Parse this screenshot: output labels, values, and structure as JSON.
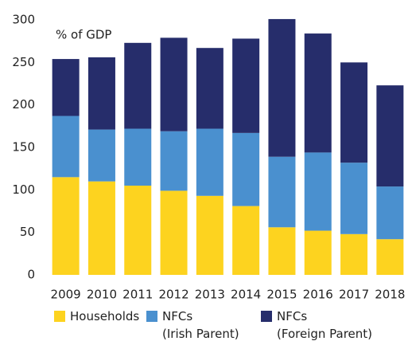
{
  "chart_data": {
    "type": "stacked_bar",
    "annotation": "% of GDP",
    "categories": [
      "2009",
      "2010",
      "2011",
      "2012",
      "2013",
      "2014",
      "2015",
      "2016",
      "2017",
      "2018"
    ],
    "series": [
      {
        "name": "Households",
        "color": "#fdd31f",
        "values": [
          115,
          110,
          105,
          99,
          93,
          81,
          56,
          52,
          48,
          42
        ]
      },
      {
        "name": "NFCs\n(Irish Parent)",
        "color": "#4a90cf",
        "values": [
          72,
          61,
          67,
          70,
          79,
          86,
          83,
          92,
          84,
          62
        ]
      },
      {
        "name": "NFCs\n(Foreign Parent)",
        "color": "#262d6b",
        "values": [
          67,
          85,
          101,
          110,
          95,
          111,
          162,
          140,
          118,
          119
        ]
      }
    ],
    "ylim": [
      0,
      300
    ],
    "yticks": [
      0,
      50,
      100,
      150,
      200,
      250,
      300
    ],
    "grid": false
  }
}
